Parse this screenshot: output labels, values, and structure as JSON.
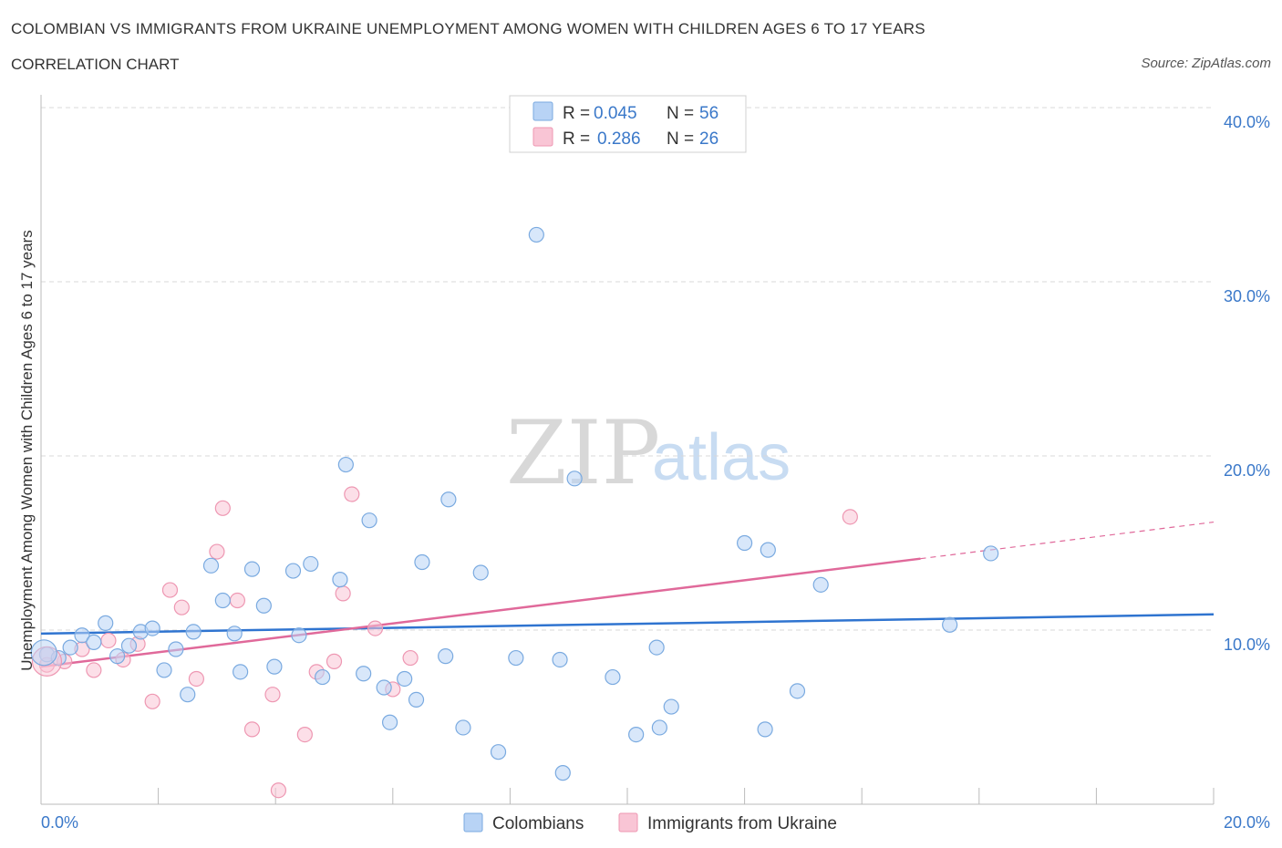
{
  "header": {
    "title": "COLOMBIAN VS IMMIGRANTS FROM UKRAINE UNEMPLOYMENT AMONG WOMEN WITH CHILDREN AGES 6 TO 17 YEARS",
    "subtitle": "CORRELATION CHART",
    "source": "Source: ZipAtlas.com"
  },
  "watermark": {
    "zip": "ZIP",
    "atlas": "atlas"
  },
  "colors": {
    "blue_fill": "#b8d3f5",
    "blue_stroke": "#7aaae0",
    "blue_line": "#2f74d0",
    "pink_fill": "#f9c5d5",
    "pink_stroke": "#ee97b2",
    "pink_line": "#e0699a",
    "grid": "#d9d9d9",
    "tick_text": "#3a78c9"
  },
  "legend": {
    "rows": [
      {
        "r_label": "R =",
        "r_value": "0.045",
        "n_label": "N =",
        "n_value": "56"
      },
      {
        "r_label": "R =",
        "r_value": "0.286",
        "n_label": "N =",
        "n_value": "26"
      }
    ]
  },
  "chart_data": {
    "type": "scatter",
    "xlim": [
      0,
      20
    ],
    "ylim": [
      0,
      40
    ],
    "xlabel": "",
    "ylabel": "Unemployment Among Women with Children Ages 6 to 17 years",
    "x_tick_labels": [
      "0.0%",
      "20.0%"
    ],
    "y_tick_labels": [
      {
        "value": 10,
        "label": "10.0%"
      },
      {
        "value": 20,
        "label": "20.0%"
      },
      {
        "value": 30,
        "label": "30.0%"
      },
      {
        "value": 40,
        "label": "40.0%"
      }
    ],
    "grid": true,
    "legend_position": "bottom",
    "series": [
      {
        "name": "Colombians",
        "color": "#b8d3f5",
        "trend": {
          "x": [
            0,
            20
          ],
          "y": [
            9.8,
            10.9
          ]
        },
        "points": [
          [
            0.1,
            8.6
          ],
          [
            0.3,
            8.4
          ],
          [
            0.5,
            9.0
          ],
          [
            0.7,
            9.7
          ],
          [
            0.9,
            9.3
          ],
          [
            1.1,
            10.4
          ],
          [
            1.3,
            8.5
          ],
          [
            1.5,
            9.1
          ],
          [
            1.7,
            9.9
          ],
          [
            1.9,
            10.1
          ],
          [
            2.1,
            7.7
          ],
          [
            2.3,
            8.9
          ],
          [
            2.5,
            6.3
          ],
          [
            2.6,
            9.9
          ],
          [
            2.9,
            13.7
          ],
          [
            3.1,
            11.7
          ],
          [
            3.3,
            9.8
          ],
          [
            3.4,
            7.6
          ],
          [
            3.6,
            13.5
          ],
          [
            3.8,
            11.4
          ],
          [
            3.98,
            7.9
          ],
          [
            4.3,
            13.4
          ],
          [
            4.4,
            9.7
          ],
          [
            4.6,
            13.8
          ],
          [
            4.8,
            7.3
          ],
          [
            5.1,
            12.9
          ],
          [
            5.2,
            19.5
          ],
          [
            5.5,
            7.5
          ],
          [
            5.6,
            16.3
          ],
          [
            5.85,
            6.7
          ],
          [
            5.95,
            4.7
          ],
          [
            6.2,
            7.2
          ],
          [
            6.4,
            6.0
          ],
          [
            6.5,
            13.9
          ],
          [
            6.9,
            8.5
          ],
          [
            6.95,
            17.5
          ],
          [
            7.2,
            4.4
          ],
          [
            7.5,
            13.3
          ],
          [
            7.8,
            3.0
          ],
          [
            8.1,
            8.4
          ],
          [
            8.45,
            32.7
          ],
          [
            8.85,
            8.3
          ],
          [
            8.9,
            1.8
          ],
          [
            9.1,
            18.7
          ],
          [
            9.75,
            7.3
          ],
          [
            10.15,
            4.0
          ],
          [
            10.5,
            9.0
          ],
          [
            10.55,
            4.4
          ],
          [
            10.75,
            5.6
          ],
          [
            12.0,
            15.0
          ],
          [
            12.35,
            4.3
          ],
          [
            12.4,
            14.6
          ],
          [
            12.9,
            6.5
          ],
          [
            13.3,
            12.6
          ],
          [
            15.5,
            10.3
          ],
          [
            16.2,
            14.4
          ]
        ]
      },
      {
        "name": "Immigrants from Ukraine",
        "color": "#f9c5d5",
        "trend": {
          "x": [
            0,
            15
          ],
          "y": [
            7.9,
            14.1
          ]
        },
        "trend_extrapolated": {
          "x": [
            15,
            20
          ],
          "y": [
            14.1,
            16.2
          ]
        },
        "points": [
          [
            0.1,
            8.0
          ],
          [
            0.4,
            8.2
          ],
          [
            0.7,
            8.9
          ],
          [
            0.9,
            7.7
          ],
          [
            1.15,
            9.4
          ],
          [
            1.4,
            8.3
          ],
          [
            1.65,
            9.2
          ],
          [
            1.9,
            5.9
          ],
          [
            2.2,
            12.3
          ],
          [
            2.4,
            11.3
          ],
          [
            2.65,
            7.2
          ],
          [
            3.1,
            17.0
          ],
          [
            3.0,
            14.5
          ],
          [
            3.35,
            11.7
          ],
          [
            3.6,
            4.3
          ],
          [
            3.95,
            6.3
          ],
          [
            4.05,
            0.8
          ],
          [
            4.5,
            4.0
          ],
          [
            4.7,
            7.6
          ],
          [
            5.0,
            8.2
          ],
          [
            5.15,
            12.1
          ],
          [
            5.3,
            17.8
          ],
          [
            5.7,
            10.1
          ],
          [
            6.0,
            6.6
          ],
          [
            6.3,
            8.4
          ],
          [
            13.8,
            16.5
          ]
        ]
      }
    ]
  },
  "bottom_legend": {
    "items": [
      {
        "label": "Colombians"
      },
      {
        "label": "Immigrants from Ukraine"
      }
    ]
  }
}
